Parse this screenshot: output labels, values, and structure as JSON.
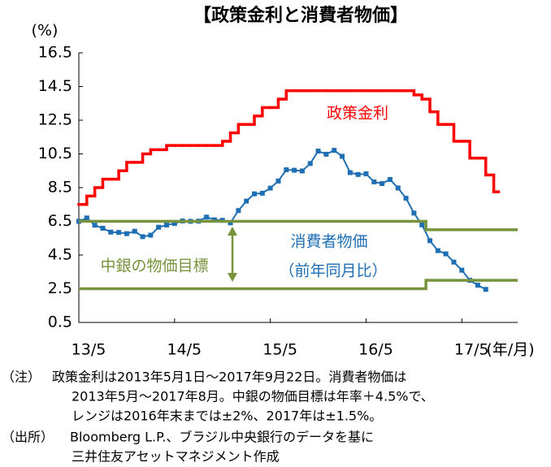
{
  "chart_data": {
    "type": "line",
    "title": "【政策金利と消費者物価】",
    "y_unit": "(%)",
    "x_unit": "(年/月)",
    "ylim": [
      0.5,
      16.5
    ],
    "yticks": [
      0.5,
      2.5,
      4.5,
      6.5,
      8.5,
      10.5,
      12.5,
      14.5,
      16.5
    ],
    "xlim": [
      0,
      55
    ],
    "xticks": [
      {
        "value": 0,
        "label": "13/5"
      },
      {
        "value": 12,
        "label": "14/5"
      },
      {
        "value": 24,
        "label": "15/5"
      },
      {
        "value": 36,
        "label": "16/5"
      },
      {
        "value": 48,
        "label": "17/5"
      }
    ],
    "grid": false,
    "series": [
      {
        "name": "政策金利",
        "color": "#ff0000",
        "step": true,
        "x": [
          0,
          1,
          2,
          3,
          4,
          5,
          6,
          7,
          8,
          9,
          10,
          11,
          12,
          13,
          14,
          15,
          16,
          17,
          18,
          19,
          20,
          21,
          22,
          23,
          24,
          25,
          26,
          27,
          28,
          29,
          30,
          31,
          32,
          33,
          34,
          35,
          36,
          37,
          38,
          39,
          40,
          41,
          42,
          43,
          44,
          45,
          46,
          47,
          48,
          49,
          50,
          51,
          52
        ],
        "values": [
          7.5,
          8.0,
          8.5,
          9.0,
          9.0,
          9.5,
          10.0,
          10.0,
          10.5,
          10.75,
          10.75,
          11.0,
          11.0,
          11.0,
          11.0,
          11.0,
          11.0,
          11.0,
          11.25,
          11.75,
          12.25,
          12.25,
          12.75,
          13.25,
          13.25,
          13.75,
          14.25,
          14.25,
          14.25,
          14.25,
          14.25,
          14.25,
          14.25,
          14.25,
          14.25,
          14.25,
          14.25,
          14.25,
          14.25,
          14.25,
          14.25,
          14.25,
          14.0,
          13.75,
          13.0,
          12.25,
          12.25,
          11.25,
          11.25,
          10.25,
          10.25,
          9.25,
          8.25
        ]
      },
      {
        "name": "消費者物価",
        "color": "#1f6fb4",
        "markers": true,
        "x": [
          0,
          1,
          2,
          3,
          4,
          5,
          6,
          7,
          8,
          9,
          10,
          11,
          12,
          13,
          14,
          15,
          16,
          17,
          18,
          19,
          20,
          21,
          22,
          23,
          24,
          25,
          26,
          27,
          28,
          29,
          30,
          31,
          32,
          33,
          34,
          35,
          36,
          37,
          38,
          39,
          40,
          41,
          42,
          43,
          44,
          45,
          46,
          47,
          48,
          49,
          50,
          51
        ],
        "values": [
          6.5,
          6.7,
          6.27,
          6.09,
          5.86,
          5.84,
          5.77,
          5.91,
          5.59,
          5.68,
          6.15,
          6.28,
          6.37,
          6.52,
          6.5,
          6.51,
          6.75,
          6.59,
          6.56,
          6.41,
          7.14,
          7.7,
          8.13,
          8.17,
          8.47,
          8.89,
          9.56,
          9.53,
          9.49,
          9.93,
          10.67,
          10.48,
          10.71,
          10.36,
          9.39,
          9.28,
          9.32,
          8.84,
          8.74,
          8.98,
          8.48,
          7.87,
          6.99,
          6.29,
          5.35,
          4.76,
          4.57,
          4.08,
          3.6,
          3.0,
          2.71,
          2.46
        ]
      },
      {
        "name": "中銀の物価目標",
        "color": "#77933c",
        "x": [
          0,
          43.5,
          43.5,
          55
        ],
        "values": [
          6.5,
          6.5,
          6.0,
          6.0
        ]
      },
      {
        "name": "中銀の物価目標",
        "color": "#77933c",
        "x": [
          0,
          43.5,
          43.5,
          55
        ],
        "values": [
          2.5,
          2.5,
          3.0,
          3.0
        ]
      }
    ],
    "annotations": [
      "政策金利",
      "消費者物価",
      "（前年同月比）",
      "中銀の物価目標"
    ],
    "notes": [
      {
        "label": "（注）",
        "lines": [
          "政策金利は2013年5月1日～2017年9月22日。消費者物価は",
          "2013年5月～2017年8月。中銀の物価目標は年率＋4.5%で、",
          "レンジは2016年末までは±2%、2017年は±1.5%。"
        ]
      },
      {
        "label": "（出所）",
        "lines": [
          "Bloomberg L.P.、ブラジル中央銀行のデータを基に",
          "三井住友アセットマネジメント作成"
        ]
      }
    ]
  }
}
